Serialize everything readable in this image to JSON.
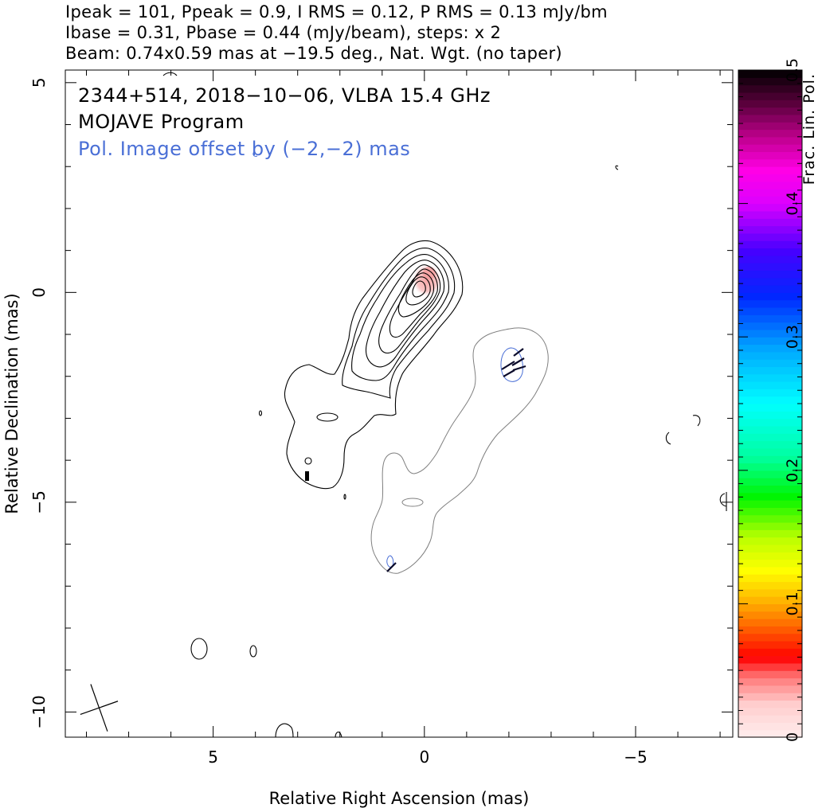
{
  "header": {
    "line1": "Ipeak = 101, Ppeak = 0.9, I RMS = 0.12, P RMS = 0.13 mJy/bm",
    "line2": "Ibase = 0.31, Pbase = 0.44 (mJy/beam), steps: x 2",
    "line3": "Beam: 0.74x0.59 mas at −19.5 deg., Nat. Wgt. (no taper)"
  },
  "annotations": {
    "source": "2344+514, 2018−10−06, VLBA 15.4 GHz",
    "program": "MOJAVE Program",
    "offset": "Pol. Image offset by (−2,−2) mas"
  },
  "colors": {
    "total_intensity_contour": "#000000",
    "pol_contour": "#7f7f7f",
    "annotation_blue": "#4a6fd6",
    "evpa": "#0a0a2a"
  },
  "chart_data": {
    "type": "contour",
    "xlabel": "Relative Right Ascension (mas)",
    "ylabel": "Relative Declination (mas)",
    "xlim": [
      8.5,
      -7.3
    ],
    "ylim": [
      -10.6,
      5.3
    ],
    "x_ticks": [
      5,
      0,
      -5
    ],
    "x_tick_labels": [
      "5",
      "0",
      "−5"
    ],
    "y_ticks": [
      5,
      0,
      -5,
      -10
    ],
    "y_tick_labels": [
      "5",
      "0",
      "−5",
      "−10"
    ],
    "colorbar": {
      "label": "Frac. Lin. Pol.",
      "range": [
        0,
        0.5
      ],
      "ticks": [
        0,
        0.1,
        0.2,
        0.3,
        0.4,
        0.5
      ],
      "tick_labels": [
        "0",
        "0.1",
        "0.2",
        "0.3",
        "0.4",
        "0.5"
      ]
    },
    "beam": {
      "major_mas": 0.74,
      "minor_mas": 0.59,
      "pa_deg": -19.5,
      "center": [
        7.7,
        -9.9
      ]
    },
    "core_position": [
      0,
      0
    ],
    "contour_levels": [
      0.31,
      0.62,
      1.24,
      2.48,
      4.96,
      9.92,
      19.84,
      39.68,
      79.36
    ],
    "pol_contour_levels": [
      0.44
    ],
    "core_frac_pol": 0.04
  }
}
